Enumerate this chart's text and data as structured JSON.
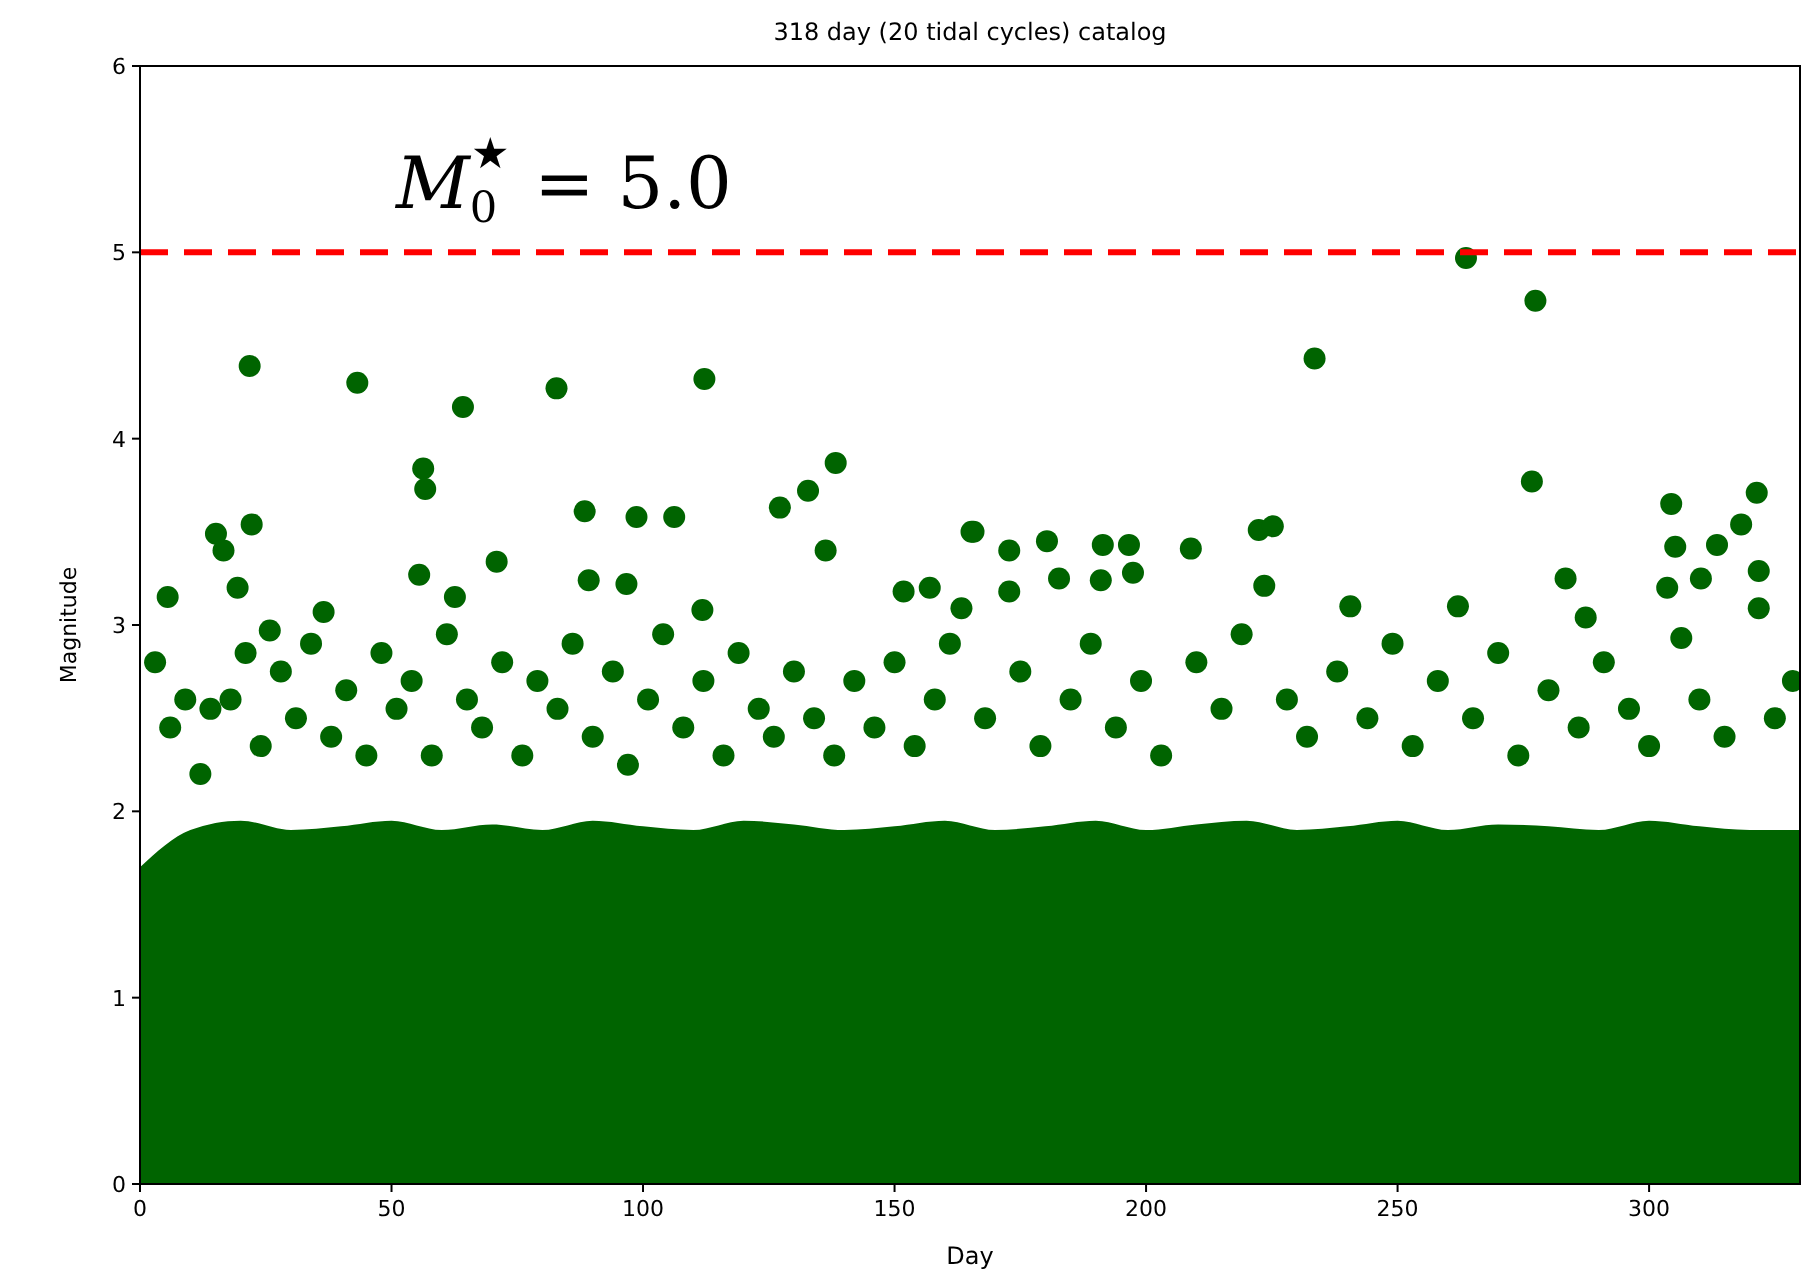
{
  "chart_data": {
    "type": "scatter",
    "title": "318 day (20 tidal cycles) catalog",
    "xlabel": "Day",
    "ylabel": "Magnitude",
    "xlim": [
      0,
      330
    ],
    "ylim": [
      0,
      6
    ],
    "xticks": [
      0,
      50,
      100,
      150,
      200,
      250,
      300
    ],
    "yticks": [
      0,
      1,
      2,
      3,
      4,
      5,
      6
    ],
    "marker": "circle",
    "grid": false,
    "ref_lines": [
      {
        "axis": "y",
        "value": 5.0,
        "label": "M$_{0}$$^{★}$ = 5.0",
        "color": "#ff0000",
        "line_style": "dashed"
      }
    ],
    "series": [
      {
        "type": "area",
        "marker": "none",
        "color": "#006400",
        "x": [
          0,
          10,
          20,
          30,
          40,
          50,
          60,
          70,
          80,
          90,
          100,
          110,
          120,
          130,
          140,
          150,
          160,
          170,
          180,
          190,
          200,
          210,
          220,
          230,
          240,
          250,
          260,
          270,
          280,
          290,
          300,
          310,
          320,
          330
        ],
        "values": [
          1.7,
          1.9,
          1.95,
          1.9,
          1.92,
          1.95,
          1.9,
          1.93,
          1.9,
          1.95,
          1.92,
          1.9,
          1.95,
          1.93,
          1.9,
          1.92,
          1.95,
          1.9,
          1.92,
          1.95,
          1.9,
          1.93,
          1.95,
          1.9,
          1.92,
          1.95,
          1.9,
          1.93,
          1.92,
          1.9,
          1.95,
          1.92,
          1.9,
          1.9
        ]
      },
      {
        "type": "scatter",
        "color": "#006400",
        "x": [
          21.8,
          43.2,
          64.2,
          82.8,
          112.2,
          56.7,
          56.3,
          22.2,
          15.1,
          16.6,
          5.5,
          19.4,
          55.5,
          70.9,
          88.4,
          98.7,
          106.2,
          127.2,
          132.8,
          138.3,
          136.3,
          165.3,
          151.8,
          157,
          62.6,
          89.2,
          96.7,
          25.8,
          36.5,
          111.8,
          163.3,
          263.6,
          277.4,
          233.5,
          276.7,
          321.4,
          304.4,
          318.3,
          313.5,
          305.2,
          321.8,
          310.3,
          303.6,
          321.8,
          283.4,
          165.7,
          172.8,
          180.3,
          191.4,
          196.6,
          208.9,
          222.4,
          225.2,
          223.5,
          172.8,
          182.7,
          191,
          197.4,
          240.6,
          262,
          306.4,
          287.4,
          328.6,
          3,
          6,
          9,
          12,
          14,
          18,
          21,
          24,
          28,
          31,
          34,
          38,
          41,
          45,
          48,
          51,
          54,
          58,
          61,
          65,
          68,
          72,
          76,
          79,
          83,
          86,
          90,
          94,
          97,
          101,
          104,
          108,
          112,
          116,
          119,
          123,
          126,
          130,
          134,
          138,
          142,
          146,
          150,
          154,
          158,
          161,
          168,
          175,
          179,
          185,
          189,
          194,
          199,
          203,
          210,
          215,
          219,
          228,
          232,
          238,
          244,
          249,
          253,
          258,
          265,
          270,
          274,
          280,
          286,
          291,
          296,
          300,
          310,
          315,
          325
        ],
        "values": [
          4.39,
          4.3,
          4.17,
          4.27,
          4.32,
          3.73,
          3.84,
          3.54,
          3.49,
          3.4,
          3.15,
          3.2,
          3.27,
          3.34,
          3.61,
          3.58,
          3.58,
          3.63,
          3.72,
          3.87,
          3.4,
          3.5,
          3.18,
          3.2,
          3.15,
          3.24,
          3.22,
          2.97,
          3.07,
          3.08,
          3.09,
          4.97,
          4.74,
          4.43,
          3.77,
          3.71,
          3.65,
          3.54,
          3.43,
          3.42,
          3.29,
          3.25,
          3.2,
          3.09,
          3.25,
          3.5,
          3.4,
          3.45,
          3.43,
          3.43,
          3.41,
          3.51,
          3.53,
          3.21,
          3.18,
          3.25,
          3.24,
          3.28,
          3.1,
          3.1,
          2.93,
          3.04,
          2.7,
          2.8,
          2.45,
          2.6,
          2.2,
          2.55,
          2.6,
          2.85,
          2.35,
          2.75,
          2.5,
          2.9,
          2.4,
          2.65,
          2.3,
          2.85,
          2.55,
          2.7,
          2.3,
          2.95,
          2.6,
          2.45,
          2.8,
          2.3,
          2.7,
          2.55,
          2.9,
          2.4,
          2.75,
          2.25,
          2.6,
          2.95,
          2.45,
          2.7,
          2.3,
          2.85,
          2.55,
          2.4,
          2.75,
          2.5,
          2.3,
          2.7,
          2.45,
          2.8,
          2.35,
          2.6,
          2.9,
          2.5,
          2.75,
          2.35,
          2.6,
          2.9,
          2.45,
          2.7,
          2.3,
          2.8,
          2.55,
          2.95,
          2.6,
          2.4,
          2.75,
          2.5,
          2.9,
          2.35,
          2.7,
          2.5,
          2.85,
          2.3,
          2.65,
          2.45,
          2.8,
          2.55,
          2.35,
          2.6,
          2.4,
          2.5
        ]
      }
    ]
  }
}
